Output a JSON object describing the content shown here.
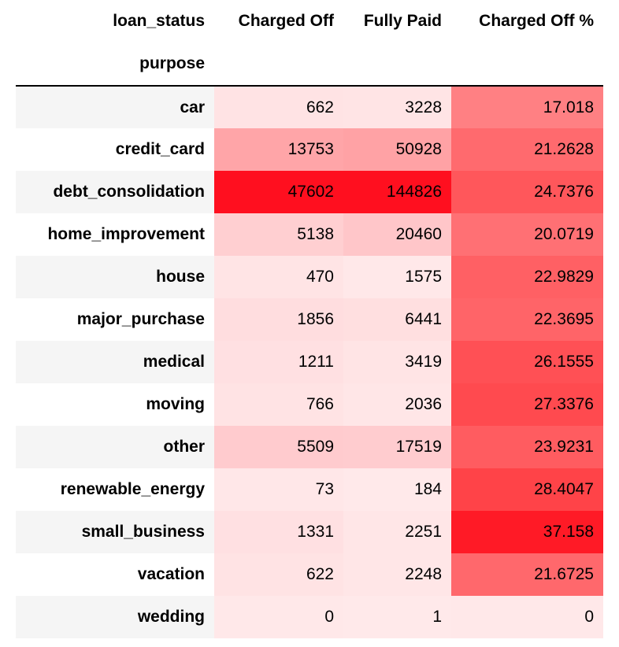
{
  "table": {
    "columns_name": "loan_status",
    "index_name": "purpose",
    "columns": [
      "Charged Off",
      "Fully Paid",
      "Charged Off %"
    ],
    "rows": [
      {
        "purpose": "car",
        "values": [
          "662",
          "3228",
          "17.018"
        ],
        "colors": [
          "#ffe3e4",
          "#ffe4e5",
          "#ff8083"
        ]
      },
      {
        "purpose": "credit_card",
        "values": [
          "13753",
          "50928",
          "21.2628"
        ],
        "colors": [
          "#ffa5a8",
          "#ffa2a5",
          "#ff6a6e"
        ]
      },
      {
        "purpose": "debt_consolidation",
        "values": [
          "47602",
          "144826",
          "24.7376"
        ],
        "colors": [
          "#ff0f1f",
          "#ff0f1f",
          "#ff575b"
        ]
      },
      {
        "purpose": "home_improvement",
        "values": [
          "5138",
          "20460",
          "20.0719"
        ],
        "colors": [
          "#ffcfd1",
          "#ffc6c9",
          "#ff7074"
        ]
      },
      {
        "purpose": "house",
        "values": [
          "470",
          "1575",
          "22.9829"
        ],
        "colors": [
          "#ffe4e5",
          "#ffe8e9",
          "#ff6064"
        ]
      },
      {
        "purpose": "major_purchase",
        "values": [
          "1856",
          "6441",
          "22.3695"
        ],
        "colors": [
          "#ffdddf",
          "#ffdfe0",
          "#ff6468"
        ]
      },
      {
        "purpose": "medical",
        "values": [
          "1211",
          "3419",
          "26.1555"
        ],
        "colors": [
          "#ffe0e2",
          "#ffe4e5",
          "#ff5055"
        ]
      },
      {
        "purpose": "moving",
        "values": [
          "766",
          "2036",
          "27.3376"
        ],
        "colors": [
          "#ffe3e4",
          "#ffe6e7",
          "#ff4a4f"
        ]
      },
      {
        "purpose": "other",
        "values": [
          "5509",
          "17519",
          "23.9231"
        ],
        "colors": [
          "#ffcbce",
          "#ffcccf",
          "#ff5c60"
        ]
      },
      {
        "purpose": "renewable_energy",
        "values": [
          "73",
          "184",
          "28.4047"
        ],
        "colors": [
          "#ffe7e8",
          "#ffe9ea",
          "#ff4348"
        ]
      },
      {
        "purpose": "small_business",
        "values": [
          "1331",
          "2251",
          "37.158"
        ],
        "colors": [
          "#ffe0e2",
          "#ffe6e7",
          "#ff1a26"
        ]
      },
      {
        "purpose": "vacation",
        "values": [
          "622",
          "2248",
          "21.6725"
        ],
        "colors": [
          "#ffe3e4",
          "#ffe6e7",
          "#ff686c"
        ]
      },
      {
        "purpose": "wedding",
        "values": [
          "0",
          "1",
          "0"
        ],
        "colors": [
          "#ffe8e9",
          "#ffe9ea",
          "#ffe8e9"
        ]
      }
    ]
  }
}
